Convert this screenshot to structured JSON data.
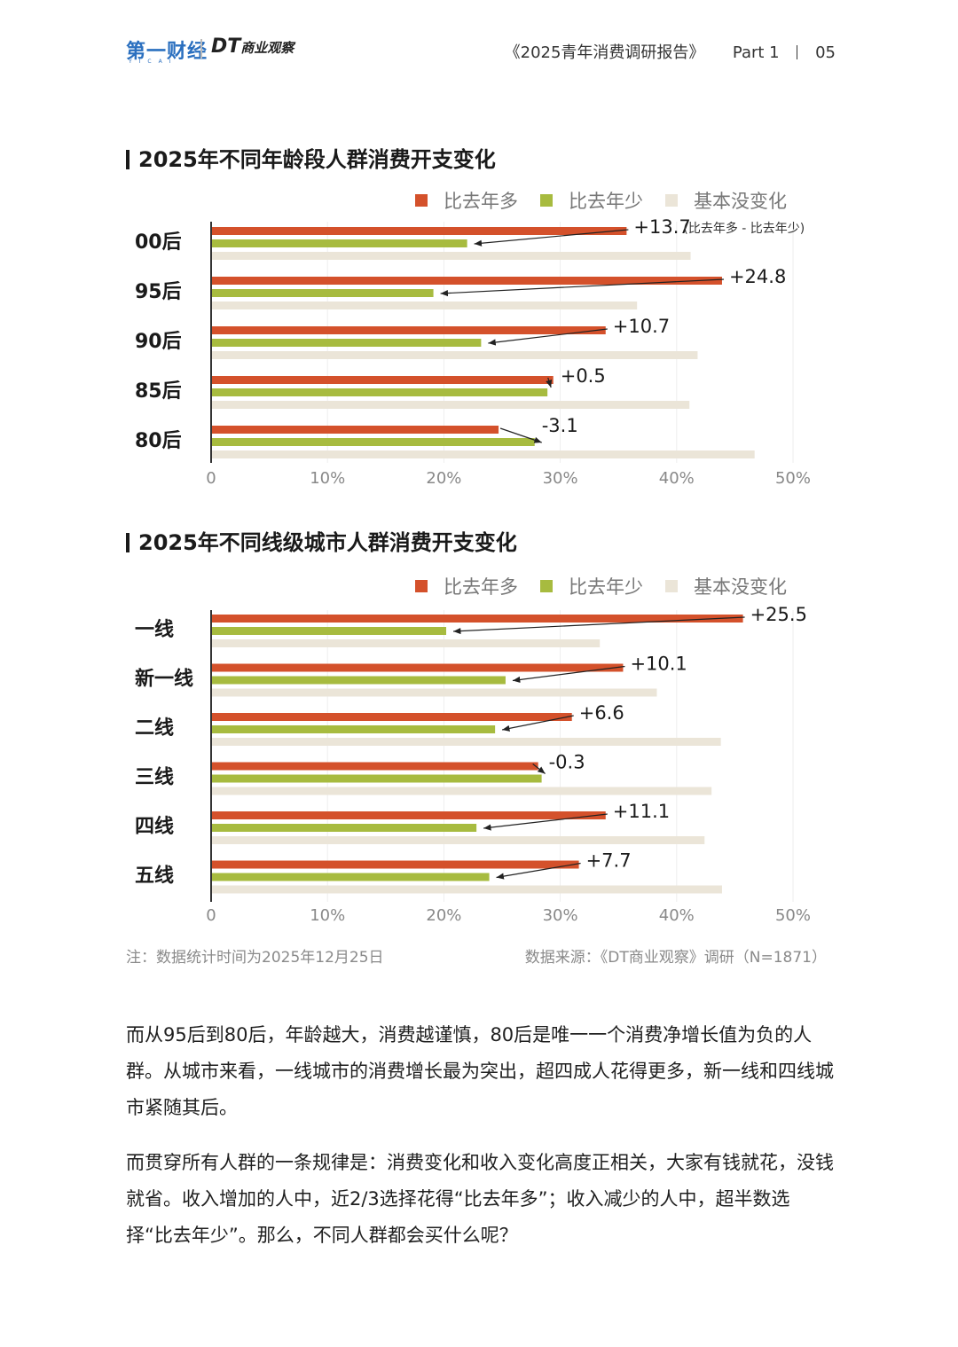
{
  "header": {
    "logo_primary": "第一财经",
    "logo_primary_sub": "YICAI",
    "logo_secondary_bold": "DT",
    "logo_secondary_text": "商业观察",
    "report_title": "《2025青年消费调研报告》",
    "part": "Part 1",
    "page": "05"
  },
  "colors": {
    "more": "#d4512b",
    "less": "#a7bb3f",
    "same": "#ebe5d8",
    "axis": "#333333",
    "grid": "#eeeeee"
  },
  "chart_data": [
    {
      "type": "bar",
      "orientation": "horizontal",
      "title": "2025年不同年龄段人群消费开支变化",
      "categories": [
        "00后",
        "95后",
        "90后",
        "85后",
        "80后"
      ],
      "series": [
        {
          "name": "比去年多",
          "values": [
            35.7,
            43.9,
            33.9,
            29.4,
            24.7
          ]
        },
        {
          "name": "比去年少",
          "values": [
            22.0,
            19.1,
            23.2,
            28.9,
            27.8
          ]
        },
        {
          "name": "基本没变化",
          "values": [
            41.2,
            36.6,
            41.8,
            41.1,
            46.7
          ]
        }
      ],
      "net_labels": [
        "+13.7",
        "+24.8",
        "+10.7",
        "+0.5",
        "-3.1"
      ],
      "net_note": "(比去年多 - 比去年少)",
      "xlim": [
        0,
        50
      ],
      "xticks": [
        "0",
        "10%",
        "20%",
        "30%",
        "40%",
        "50%"
      ],
      "grid": true,
      "legend": "top-right"
    },
    {
      "type": "bar",
      "orientation": "horizontal",
      "title": "2025年不同线级城市人群消费开支变化",
      "categories": [
        "一线",
        "新一线",
        "二线",
        "三线",
        "四线",
        "五线"
      ],
      "series": [
        {
          "name": "比去年多",
          "values": [
            45.7,
            35.4,
            31.0,
            28.1,
            33.9,
            31.6
          ]
        },
        {
          "name": "比去年少",
          "values": [
            20.2,
            25.3,
            24.4,
            28.4,
            22.8,
            23.9
          ]
        },
        {
          "name": "基本没变化",
          "values": [
            33.4,
            38.3,
            43.8,
            43.0,
            42.4,
            43.9
          ]
        }
      ],
      "net_labels": [
        "+25.5",
        "+10.1",
        "+6.6",
        "-0.3",
        "+11.1",
        "+7.7"
      ],
      "xlim": [
        0,
        50
      ],
      "xticks": [
        "0",
        "10%",
        "20%",
        "30%",
        "40%",
        "50%"
      ],
      "grid": true,
      "legend": "top-right"
    }
  ],
  "notes": {
    "left": "注：数据统计时间为2025年12月25日",
    "right": "数据来源：《DT商业观察》调研（N=1871）"
  },
  "paragraphs": [
    "而从95后到80后，年龄越大，消费越谨慎，80后是唯一一个消费净增长值为负的人群。从城市来看，一线城市的消费增长最为突出，超四成人花得更多，新一线和四线城市紧随其后。",
    "而贯穿所有人群的一条规律是：消费变化和收入变化高度正相关，大家有钱就花，没钱就省。收入增加的人中，近2/3选择花得“比去年多”；收入减少的人中，超半数选择“比去年少”。那么，不同人群都会买什么呢？"
  ]
}
